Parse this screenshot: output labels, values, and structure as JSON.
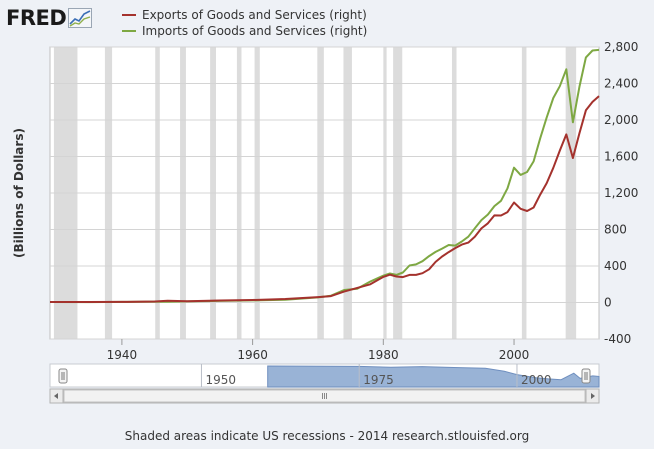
{
  "logo": {
    "text": "FRED",
    "icon": "line-chart-icon"
  },
  "footer": "Shaded areas indicate US recessions - 2014 research.stlouisfed.org",
  "colors": {
    "exports": "#a4322d",
    "imports": "#7ea843",
    "recession": "#dcdcdc",
    "plot_bg": "#ffffff",
    "navigator_fill": "#99b3d6"
  },
  "chart_data": {
    "type": "line",
    "ylabel": "(Billions of Dollars)",
    "y_axis_side": "right",
    "xlim": [
      1929,
      2013
    ],
    "ylim": [
      -400,
      2800
    ],
    "x_ticks": [
      1940,
      1960,
      1980,
      2000
    ],
    "y_ticks": [
      -400,
      0,
      400,
      800,
      1200,
      1600,
      2000,
      2400,
      2800
    ],
    "y_tick_labels": [
      "-400",
      "0",
      "400",
      "800",
      "1,200",
      "1,600",
      "2,000",
      "2,400",
      "2,800"
    ],
    "grid": true,
    "legend_position": "top-left",
    "recessions": [
      [
        1929.6,
        1933.2
      ],
      [
        1937.4,
        1938.5
      ],
      [
        1945.1,
        1945.8
      ],
      [
        1948.9,
        1949.8
      ],
      [
        1953.5,
        1954.4
      ],
      [
        1957.6,
        1958.3
      ],
      [
        1960.3,
        1961.1
      ],
      [
        1969.9,
        1970.9
      ],
      [
        1973.9,
        1975.2
      ],
      [
        1980.0,
        1980.5
      ],
      [
        1981.5,
        1982.9
      ],
      [
        1990.5,
        1991.2
      ],
      [
        2001.2,
        2001.9
      ],
      [
        2007.9,
        2009.5
      ]
    ],
    "series": [
      {
        "name": "Exports of Goods and Services (right)",
        "x": [
          1929,
          1935,
          1940,
          1945,
          1947,
          1950,
          1955,
          1960,
          1965,
          1970,
          1972,
          1974,
          1976,
          1978,
          1980,
          1981,
          1982,
          1983,
          1984,
          1985,
          1986,
          1987,
          1988,
          1989,
          1990,
          1991,
          1992,
          1993,
          1994,
          1995,
          1996,
          1997,
          1998,
          1999,
          2000,
          2001,
          2002,
          2003,
          2004,
          2005,
          2006,
          2007,
          2008,
          2009,
          2010,
          2011,
          2012,
          2013
        ],
        "values": [
          6,
          5,
          7,
          11,
          19,
          14,
          22,
          27,
          38,
          59,
          70,
          120,
          160,
          200,
          280,
          305,
          285,
          278,
          302,
          303,
          321,
          364,
          445,
          504,
          552,
          596,
          635,
          656,
          720,
          812,
          868,
          954,
          953,
          991,
          1096,
          1027,
          1003,
          1041,
          1182,
          1309,
          1476,
          1665,
          1842,
          1584,
          1853,
          2106,
          2198,
          2262
        ]
      },
      {
        "name": "Imports of Goods and Services (right)",
        "x": [
          1929,
          1935,
          1940,
          1945,
          1947,
          1950,
          1955,
          1960,
          1965,
          1970,
          1972,
          1974,
          1976,
          1978,
          1980,
          1981,
          1982,
          1983,
          1984,
          1985,
          1986,
          1987,
          1988,
          1989,
          1990,
          1991,
          1992,
          1993,
          1994,
          1995,
          1996,
          1997,
          1998,
          1999,
          2000,
          2001,
          2002,
          2003,
          2004,
          2005,
          2006,
          2007,
          2008,
          2009,
          2010,
          2011,
          2012,
          2013
        ],
        "values": [
          6,
          4,
          7,
          10,
          8,
          12,
          18,
          23,
          31,
          56,
          75,
          137,
          150,
          230,
          294,
          318,
          303,
          329,
          405,
          417,
          453,
          509,
          554,
          591,
          630,
          624,
          668,
          721,
          813,
          903,
          964,
          1056,
          1115,
          1252,
          1477,
          1398,
          1430,
          1546,
          1800,
          2028,
          2241,
          2370,
          2556,
          1975,
          2363,
          2686,
          2762,
          2768
        ]
      }
    ]
  },
  "navigator": {
    "tick_labels": [
      "1950",
      "1975",
      "2000"
    ],
    "tick_years": [
      1950,
      1975,
      2000
    ],
    "xlim": [
      1926,
      2013
    ],
    "selected_range": [
      1929,
      2013
    ]
  }
}
